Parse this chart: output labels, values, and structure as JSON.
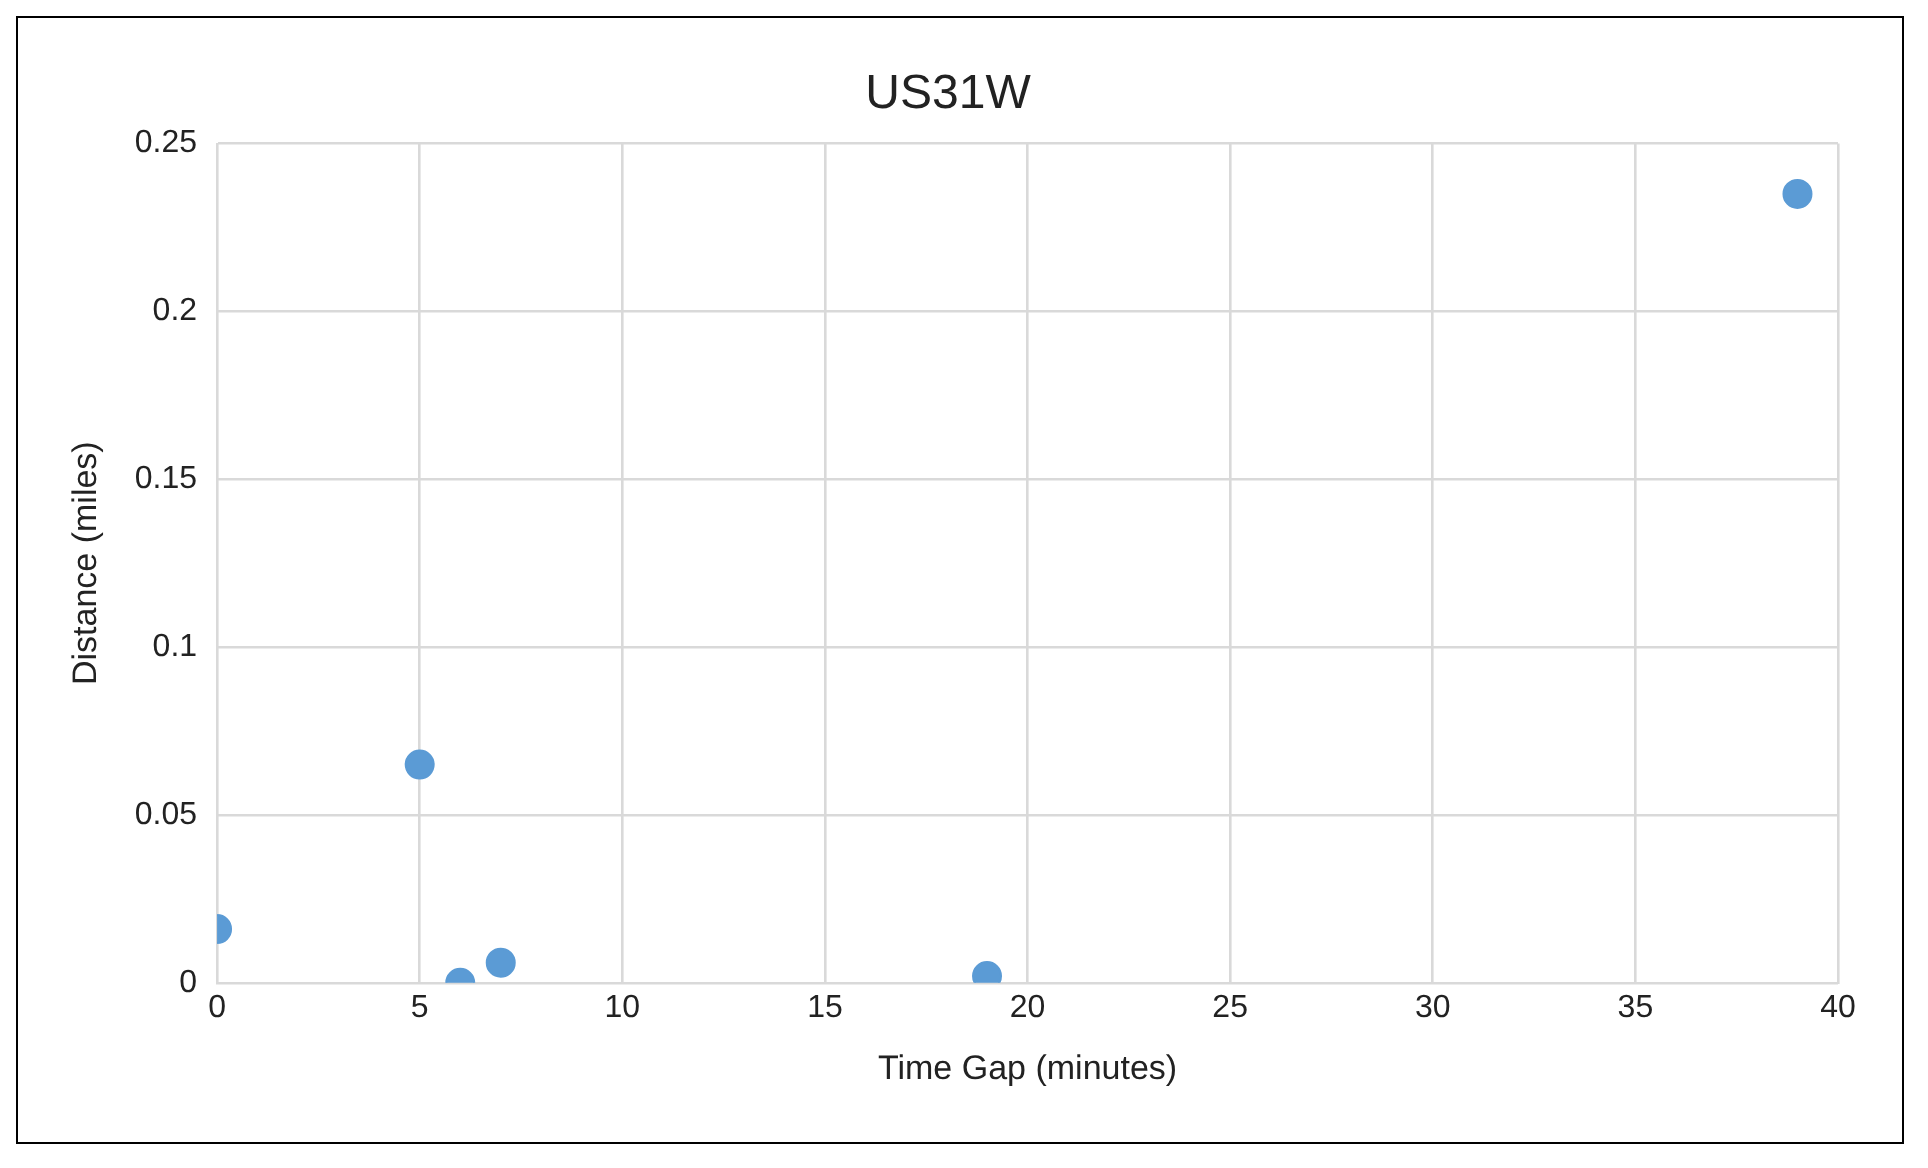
{
  "chart_data": {
    "type": "scatter",
    "title": "US31W",
    "xlabel": "Time Gap (minutes)",
    "ylabel": "Distance (miles)",
    "x": [
      0,
      5,
      6,
      7,
      19,
      39
    ],
    "values": [
      0.016,
      0.065,
      0,
      0.006,
      0.002,
      0.235
    ],
    "color": "#5b9bd5",
    "marker": "circle",
    "xlim": [
      0,
      40
    ],
    "xticks": [
      0,
      5,
      10,
      15,
      20,
      25,
      30,
      35,
      40
    ],
    "ylim": [
      0,
      0.25
    ],
    "yticks": [
      0,
      0.05,
      0.1,
      0.15,
      0.2,
      0.25
    ],
    "grid": true,
    "legend": false
  }
}
